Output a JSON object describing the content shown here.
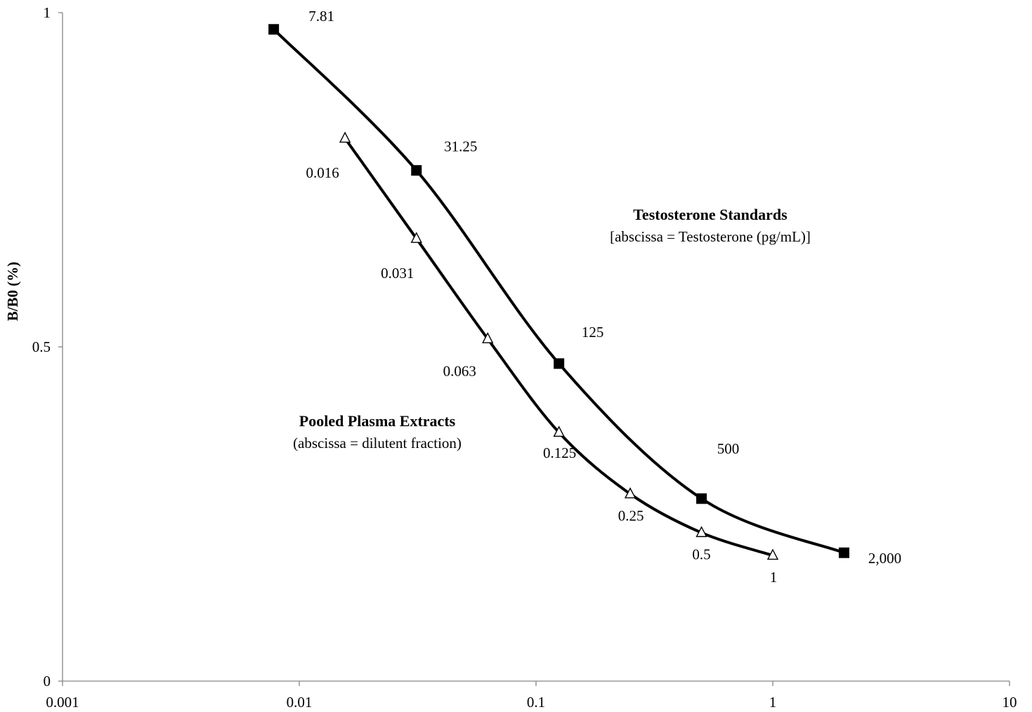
{
  "chart_data": {
    "type": "line",
    "x_scale": "log",
    "xlim": [
      0.001,
      10
    ],
    "ylim": [
      0,
      1
    ],
    "xlabel": "",
    "ylabel": "B/B0 (%)",
    "grid": false,
    "legend": "none",
    "x_ticks": [
      {
        "value": 0.001,
        "label": "0.001"
      },
      {
        "value": 0.01,
        "label": "0.01"
      },
      {
        "value": 0.1,
        "label": "0.1"
      },
      {
        "value": 1,
        "label": "1"
      },
      {
        "value": 10,
        "label": "10"
      }
    ],
    "y_ticks": [
      {
        "value": 0,
        "label": "0"
      },
      {
        "value": 0.5,
        "label": "0.5"
      },
      {
        "value": 1,
        "label": "1"
      }
    ],
    "series": [
      {
        "marker": "square",
        "color": "#000000",
        "annotation_title": "Testosterone Standards",
        "annotation_subtitle": "[abscissa = Testosterone (pg/mL)]",
        "points": [
          {
            "x": 0.0078,
            "y": 0.975,
            "label": "7.81"
          },
          {
            "x": 0.03125,
            "y": 0.764,
            "label": "31.25"
          },
          {
            "x": 0.125,
            "y": 0.475,
            "label": "125"
          },
          {
            "x": 0.5,
            "y": 0.273,
            "label": "500"
          },
          {
            "x": 2,
            "y": 0.192,
            "label": "2,000"
          }
        ]
      },
      {
        "marker": "triangle",
        "color": "#000000",
        "annotation_title": "Pooled Plasma Extracts",
        "annotation_subtitle": "(abscissa = dilutent fraction)",
        "points": [
          {
            "x": 0.0156,
            "y": 0.812,
            "label": "0.016"
          },
          {
            "x": 0.03125,
            "y": 0.662,
            "label": "0.031"
          },
          {
            "x": 0.0625,
            "y": 0.512,
            "label": "0.063"
          },
          {
            "x": 0.125,
            "y": 0.372,
            "label": "0.125"
          },
          {
            "x": 0.25,
            "y": 0.28,
            "label": "0.25"
          },
          {
            "x": 0.5,
            "y": 0.222,
            "label": "0.5"
          },
          {
            "x": 1,
            "y": 0.188,
            "label": "1"
          }
        ]
      }
    ]
  }
}
